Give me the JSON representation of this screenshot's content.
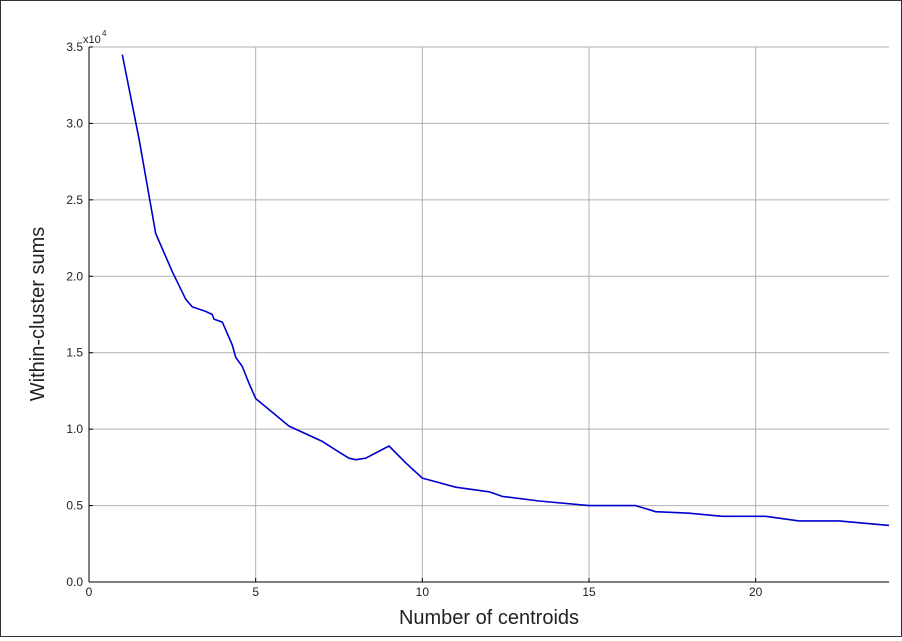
{
  "chart_data": {
    "type": "line",
    "title": "",
    "xlabel": "Number of centroids",
    "ylabel": "Within-cluster sums",
    "y_exponent_base": "x10",
    "y_exponent_power": "4",
    "xlim": [
      0,
      24
    ],
    "ylim": [
      0,
      3.5
    ],
    "x_ticks": [
      0,
      5,
      10,
      15,
      20
    ],
    "x_tick_labels": [
      "0",
      "5",
      "10",
      "15",
      "20"
    ],
    "y_ticks": [
      0,
      0.5,
      1.0,
      1.5,
      2.0,
      2.5,
      3.0,
      3.5
    ],
    "y_tick_labels": [
      "0.0",
      "0.5",
      "1.0",
      "1.5",
      "2.0",
      "2.5",
      "3.0",
      "3.5"
    ],
    "grid": true,
    "colors": {
      "line": "#0000cc",
      "grid": "#b0b0b0",
      "axis": "#000000"
    },
    "series": [
      {
        "x": [
          1,
          1.5,
          2,
          2.5,
          2.9,
          3.1,
          3.5,
          3.7,
          3.75,
          4.0,
          4.1,
          4.3,
          4.4,
          4.6,
          4.8,
          5,
          5.5,
          6,
          7,
          7.5,
          7.8,
          8.0,
          8.3,
          9,
          9.5,
          10,
          10.5,
          11,
          12,
          12.4,
          13.5,
          15,
          16.3,
          16.4,
          17,
          18,
          19,
          20.3,
          21.3,
          22.5,
          23,
          24
        ],
        "y": [
          3.45,
          2.9,
          2.28,
          2.03,
          1.85,
          1.8,
          1.77,
          1.75,
          1.72,
          1.7,
          1.65,
          1.55,
          1.47,
          1.41,
          1.3,
          1.2,
          1.11,
          1.02,
          0.92,
          0.85,
          0.81,
          0.8,
          0.81,
          0.89,
          0.78,
          0.68,
          0.65,
          0.62,
          0.59,
          0.56,
          0.53,
          0.5,
          0.5,
          0.5,
          0.46,
          0.45,
          0.43,
          0.43,
          0.4,
          0.4,
          0.39,
          0.37
        ]
      }
    ]
  }
}
